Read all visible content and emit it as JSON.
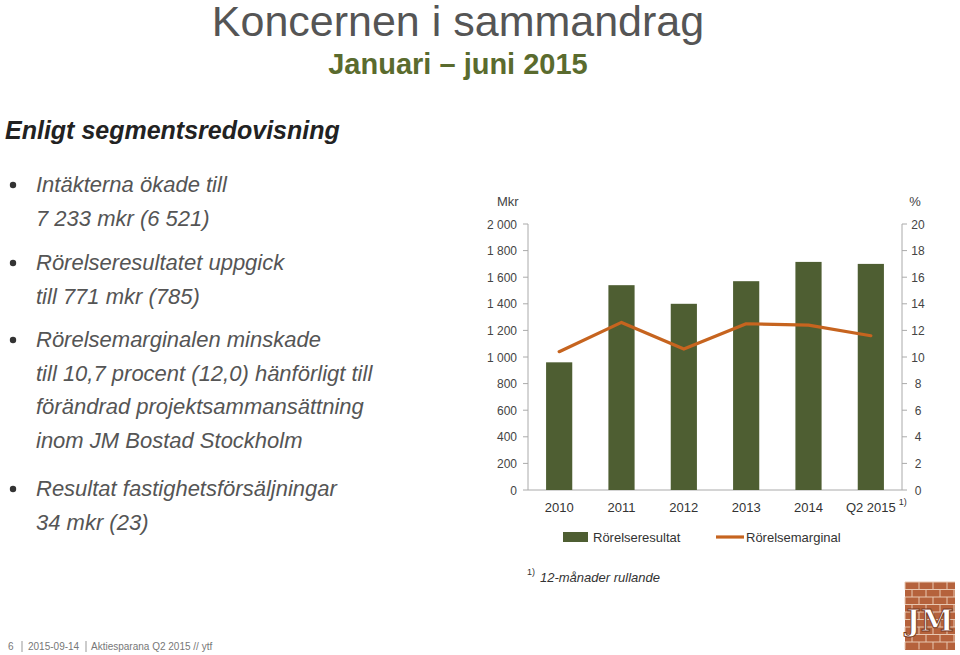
{
  "slide": {
    "title": "Koncernen i sammandrag",
    "subtitle": "Januari – juni 2015",
    "section": "Enligt segmentsredovisning",
    "bullets": [
      [
        "Intäkterna ökade till",
        "7 233 mkr (6 521)"
      ],
      [
        "Rörelseresultatet uppgick",
        "till 771 mkr (785)"
      ],
      [
        "Rörelsemarginalen minskade",
        "till 10,7 procent (12,0) hänförligt till",
        "förändrad projektsammansättning",
        "inom JM Bostad Stockholm"
      ],
      [
        "Resultat fastighetsförsäljningar",
        "34 mkr (23)"
      ]
    ],
    "footer": {
      "page": "6",
      "date": "2015-09-14",
      "text": "Aktiesparana Q2 2015 // ytf"
    },
    "logo": "JM"
  },
  "chart_data": {
    "type": "bar",
    "y_label": "Mkr",
    "y2_label": "%",
    "categories": [
      "2010",
      "2011",
      "2012",
      "2013",
      "2014",
      "Q2 2015"
    ],
    "category_note": "1)",
    "series": [
      {
        "name": "Rörelseresultat",
        "type": "bar",
        "color": "#4e5e32",
        "values": [
          960,
          1540,
          1400,
          1570,
          1715,
          1700
        ]
      },
      {
        "name": "Rörelsemarginal",
        "type": "line",
        "axis": "y2",
        "color": "#c6641f",
        "values": [
          10.4,
          12.6,
          10.6,
          12.5,
          12.4,
          11.6
        ]
      }
    ],
    "ylim": [
      0,
      2000
    ],
    "yticks": [
      0,
      200,
      400,
      600,
      800,
      {
        "value": 1000,
        "label": "1 000"
      },
      {
        "value": 1200,
        "label": "1 200"
      },
      {
        "value": 1400,
        "label": "1 400"
      },
      {
        "value": 1600,
        "label": "1 600"
      },
      {
        "value": 1800,
        "label": "1 800"
      },
      {
        "value": 2000,
        "label": "2 000"
      }
    ],
    "y2lim": [
      0,
      20
    ],
    "y2ticks": [
      0,
      2,
      4,
      6,
      8,
      10,
      12,
      14,
      16,
      18,
      20
    ],
    "grid": false,
    "legend": "bottom",
    "footnote": {
      "mark": "1)",
      "text": "12-månader rullande"
    }
  }
}
